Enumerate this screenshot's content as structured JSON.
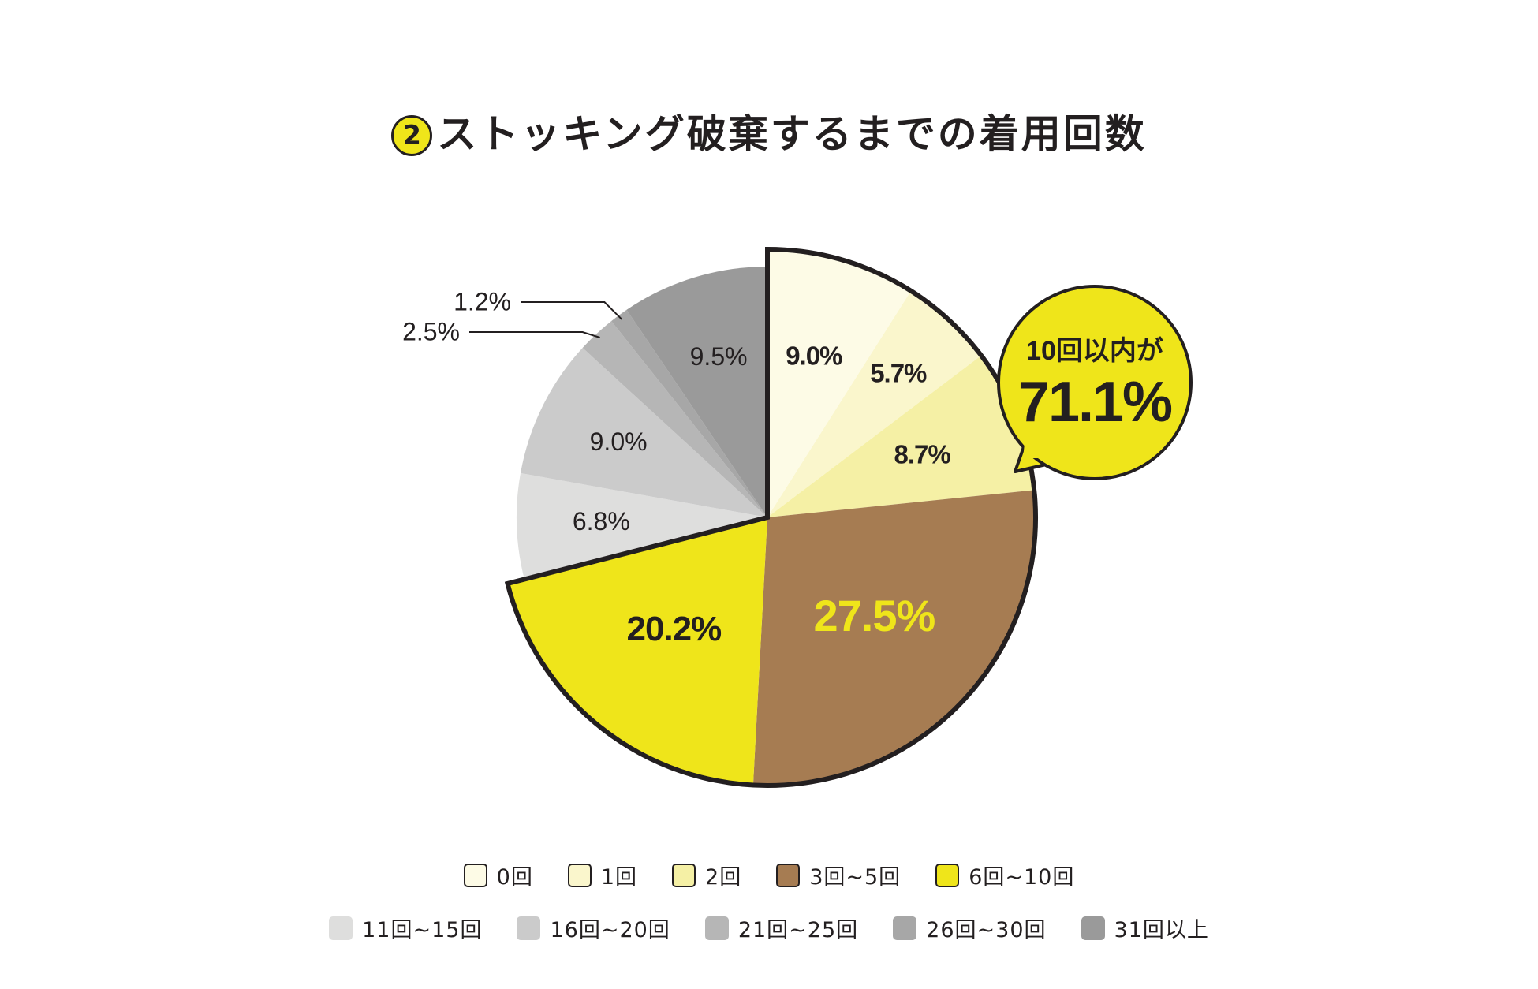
{
  "title": {
    "number": "2",
    "text": "ストッキング破棄するまでの着用回数"
  },
  "chart_data": {
    "type": "pie",
    "title": "②ストッキング破棄するまでの着用回数",
    "start_angle_deg": 0,
    "direction": "clockwise",
    "slices": [
      {
        "label": "0回",
        "value": 9.0,
        "value_label": "9.0%",
        "color": "#fdfbe6",
        "group": "within10",
        "label_style": "bold-dark"
      },
      {
        "label": "1回",
        "value": 5.7,
        "value_label": "5.7%",
        "color": "#faf6cc",
        "group": "within10",
        "label_style": "bold-dark"
      },
      {
        "label": "2回",
        "value": 8.7,
        "value_label": "8.7%",
        "color": "#f5f0a5",
        "group": "within10",
        "label_style": "bold-dark"
      },
      {
        "label": "3回~5回",
        "value": 27.5,
        "value_label": "27.5%",
        "color": "#a67c52",
        "group": "within10",
        "label_style": "bold-yellow"
      },
      {
        "label": "6回~10回",
        "value": 20.2,
        "value_label": "20.2%",
        "color": "#efe51a",
        "group": "within10",
        "label_style": "bold-dark"
      },
      {
        "label": "11回~15回",
        "value": 6.8,
        "value_label": "6.8%",
        "color": "#dededd",
        "group": "over10",
        "label_style": "light"
      },
      {
        "label": "16回~20回",
        "value": 9.0,
        "value_label": "9.0%",
        "color": "#cbcbcb",
        "group": "over10",
        "label_style": "light"
      },
      {
        "label": "21回~25回",
        "value": 2.5,
        "value_label": "2.5%",
        "color": "#b6b6b6",
        "group": "over10",
        "label_style": "leader"
      },
      {
        "label": "26回~30回",
        "value": 1.2,
        "value_label": "1.2%",
        "color": "#a7a7a7",
        "group": "over10",
        "label_style": "leader"
      },
      {
        "label": "31回以上",
        "value": 9.5,
        "value_label": "9.5%",
        "color": "#9a9a9a",
        "group": "over10",
        "label_style": "light"
      }
    ],
    "callout": {
      "line1": "10回以内が",
      "line2": "71.1%",
      "color": "#efe51a"
    },
    "legend_placement": "bottom"
  }
}
